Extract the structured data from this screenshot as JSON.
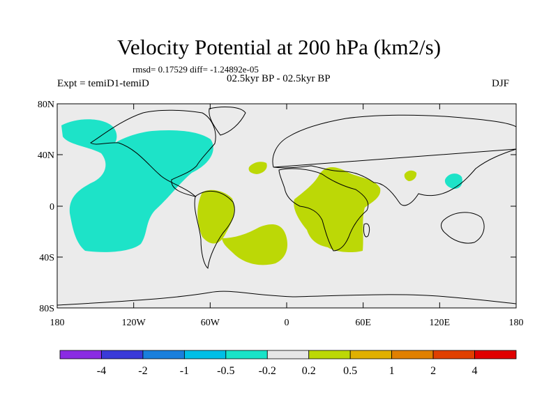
{
  "figure": {
    "title": "Velocity Potential at 200 hPa (km2/s)",
    "stats": "rmsd= 0.17529 diff= -1.24892e-05",
    "left_label": "Expt = temiD1-temiD",
    "center_label": "02.5kyr BP - 02.5kyr BP",
    "right_label": "DJF"
  },
  "axes": {
    "lat_ticks": [
      "80N",
      "40N",
      "0",
      "40S",
      "80S"
    ],
    "lon_ticks": [
      "180",
      "120W",
      "60W",
      "0",
      "60E",
      "120E",
      "180"
    ]
  },
  "colorbar": {
    "colors": [
      "#8a2be2",
      "#3a3ad8",
      "#1a7fdc",
      "#00bfe6",
      "#19e3c8",
      "#e6e6e6",
      "#bcd806",
      "#e0b000",
      "#e08000",
      "#e04000",
      "#e00000"
    ],
    "labels": [
      "-4",
      "-2",
      "-1",
      "-0.5",
      "-0.2",
      "0.2",
      "0.5",
      "1",
      "2",
      "4"
    ]
  },
  "regions": [
    {
      "name": "pacific-negative-anomaly",
      "color": "#1de3c8"
    },
    {
      "name": "south-america-positive-anomaly",
      "color": "#bcd806"
    },
    {
      "name": "south-atlantic-positive-anomaly",
      "color": "#bcd806"
    },
    {
      "name": "africa-positive-anomaly",
      "color": "#bcd806"
    },
    {
      "name": "mediterranean-positive-anomaly",
      "color": "#bcd806"
    },
    {
      "name": "south-asia-positive-anomaly",
      "color": "#bcd806"
    },
    {
      "name": "west-pacific-negative-anomaly",
      "color": "#1de3c8"
    }
  ]
}
